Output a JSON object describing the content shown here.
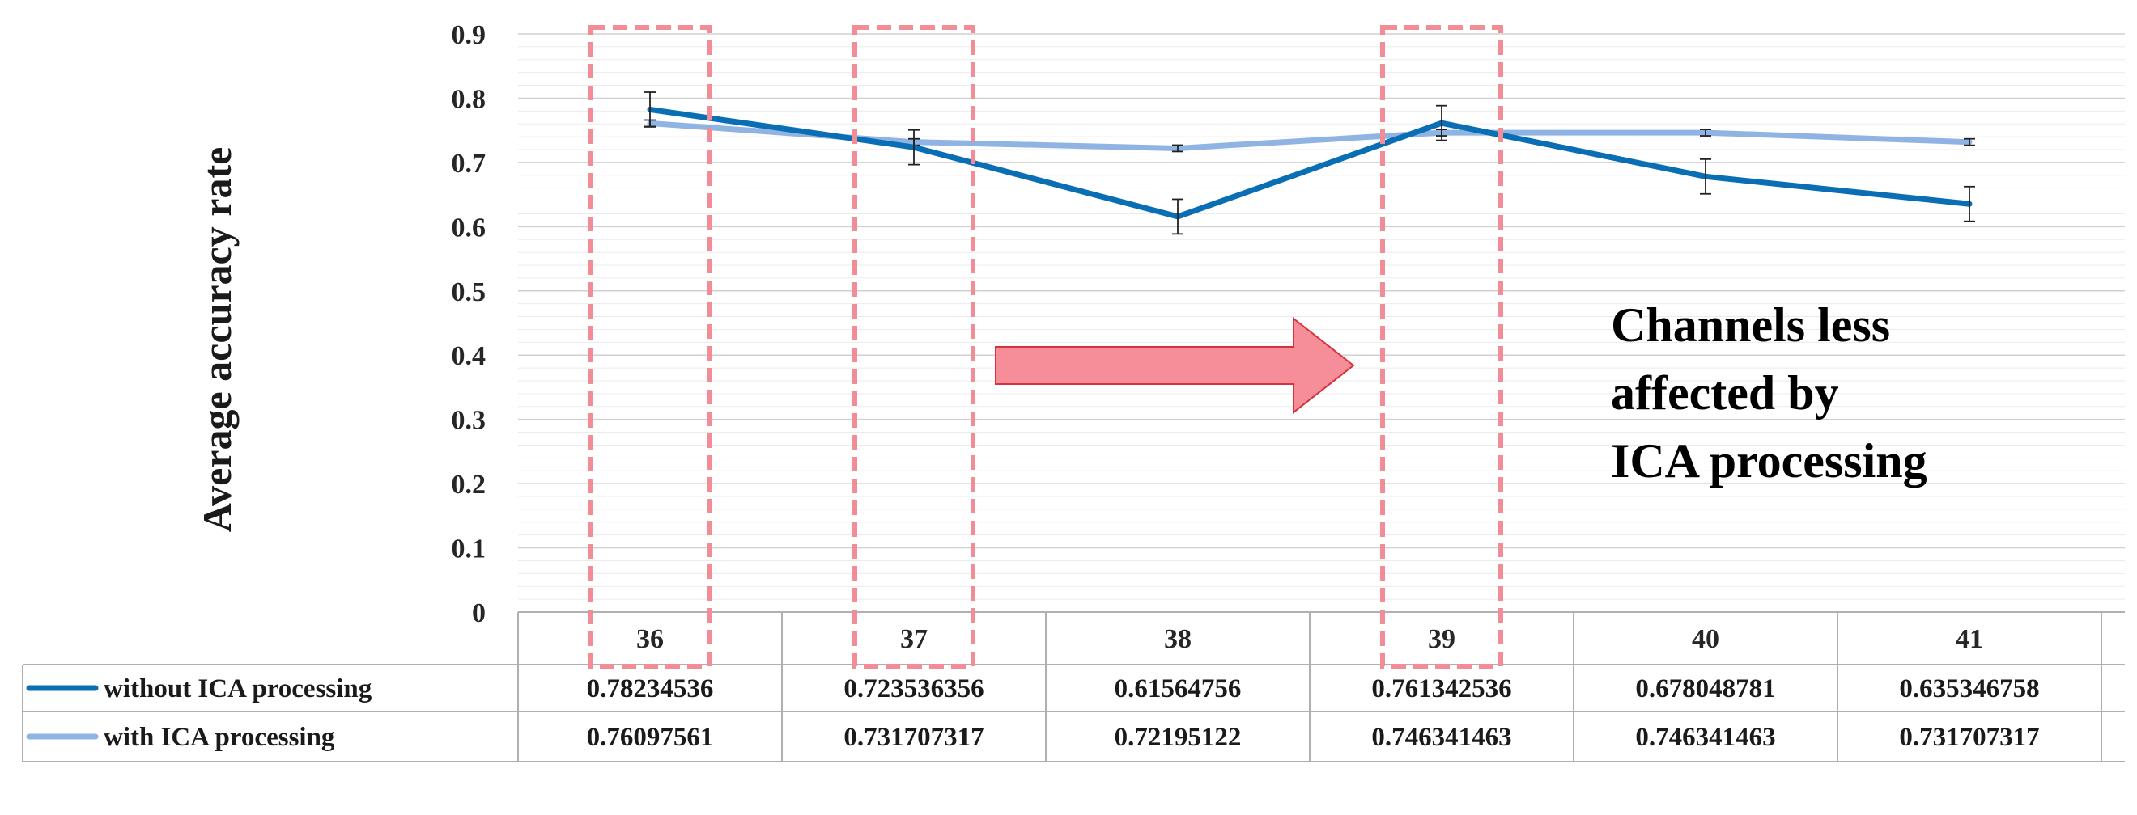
{
  "chart_data": {
    "type": "line",
    "ylabel": "Average accuracy rate",
    "xlabel": "",
    "ylim": [
      0,
      0.9
    ],
    "yticks": [
      "0",
      "0.1",
      "0.2",
      "0.3",
      "0.4",
      "0.5",
      "0.6",
      "0.7",
      "0.8",
      "0.9"
    ],
    "categories": [
      "36",
      "37",
      "38",
      "39",
      "40",
      "41"
    ],
    "grid": true,
    "legend": "data-table-below",
    "series": [
      {
        "name": "without ICA processing",
        "color": "#0a6eb4",
        "values": [
          0.78234536,
          0.723536356,
          0.61564756,
          0.761342536,
          0.678048781,
          0.635346758
        ],
        "labels": [
          "0.78234536",
          "0.723536356",
          "0.61564756",
          "0.761342536",
          "0.678048781",
          "0.635346758"
        ],
        "error": [
          0.027,
          0.027,
          0.027,
          0.027,
          0.027,
          0.027
        ]
      },
      {
        "name": "with ICA processing",
        "color": "#8fb4e3",
        "values": [
          0.76097561,
          0.731707317,
          0.72195122,
          0.746341463,
          0.746341463,
          0.731707317
        ],
        "labels": [
          "0.76097561",
          "0.731707317",
          "0.72195122",
          "0.746341463",
          "0.746341463",
          "0.731707317"
        ],
        "error": [
          0.005,
          0.005,
          0.005,
          0.005,
          0.005,
          0.005
        ]
      }
    ],
    "highlighted_categories": [
      "36",
      "37",
      "39"
    ],
    "highlight_color": "#f28c96",
    "annotation": {
      "lines": [
        "Channels less",
        "affected by",
        "ICA processing"
      ]
    }
  }
}
